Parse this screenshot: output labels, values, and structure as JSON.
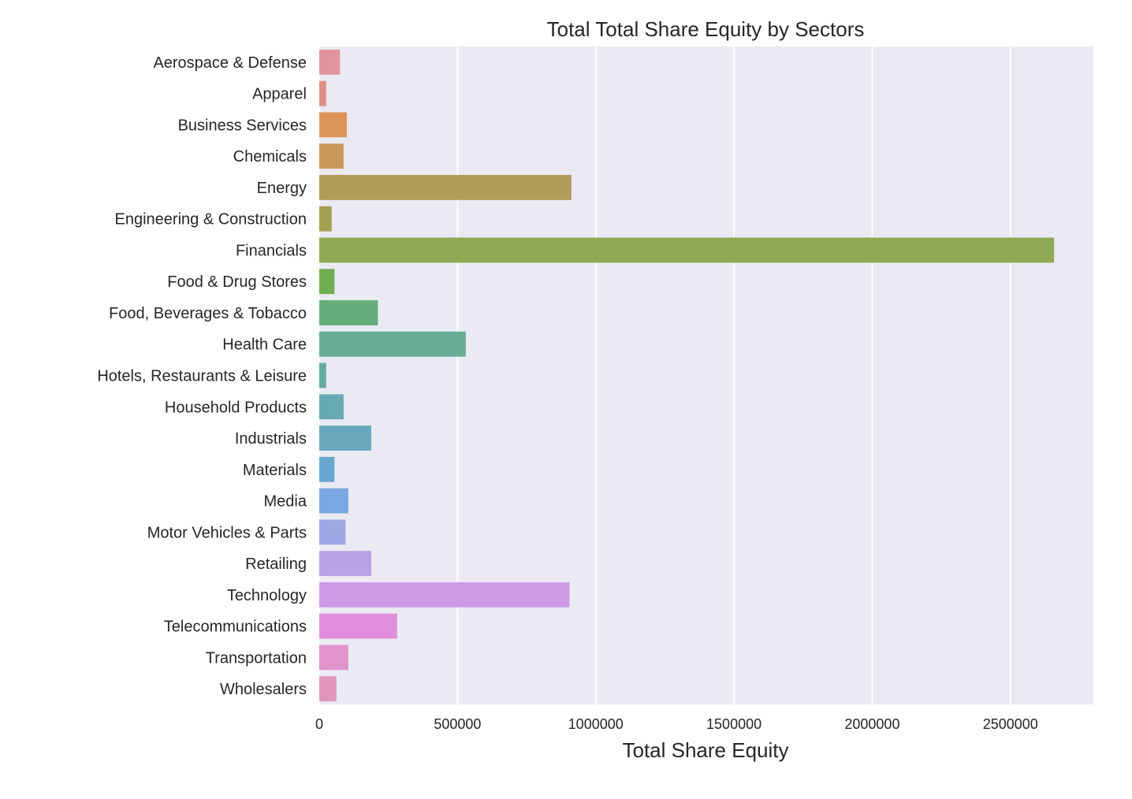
{
  "chart_data": {
    "type": "bar",
    "orientation": "horizontal",
    "title": "Total Total Share Equity by Sectors",
    "xlabel": "Total Share Equity",
    "ylabel": "",
    "xlim": [
      0,
      2800000
    ],
    "xticks": [
      0,
      500000,
      1000000,
      1500000,
      2000000,
      2500000
    ],
    "xtick_labels": [
      "0",
      "500000",
      "1000000",
      "1500000",
      "2000000",
      "2500000"
    ],
    "grid": true,
    "background": "#eaeaf2",
    "grid_color": "#ffffff",
    "categories": [
      "Aerospace & Defense",
      "Apparel",
      "Business Services",
      "Chemicals",
      "Energy",
      "Engineering & Construction",
      "Financials",
      "Food & Drug Stores",
      "Food, Beverages & Tobacco",
      "Health Care",
      "Hotels, Restaurants & Leisure",
      "Household Products",
      "Industrials",
      "Materials",
      "Media",
      "Motor Vehicles & Parts",
      "Retailing",
      "Technology",
      "Telecommunications",
      "Transportation",
      "Wholesalers"
    ],
    "values": [
      75000,
      25000,
      100000,
      88000,
      912000,
      45000,
      2658000,
      55000,
      212000,
      530000,
      25000,
      88000,
      188000,
      55000,
      105000,
      95000,
      188000,
      905000,
      282000,
      105000,
      62000
    ],
    "colors": [
      "#e1949e",
      "#e08f84",
      "#dc9459",
      "#c9975a",
      "#b19c59",
      "#a2a051",
      "#91a854",
      "#70ad50",
      "#62ad7a",
      "#67ad94",
      "#65aa9e",
      "#67aab3",
      "#6aa9bd",
      "#68a7d0",
      "#7aa7e1",
      "#9fa7e3",
      "#b8a2e3",
      "#cd9ae3",
      "#e08fdc",
      "#e193cc",
      "#e196b8"
    ]
  }
}
